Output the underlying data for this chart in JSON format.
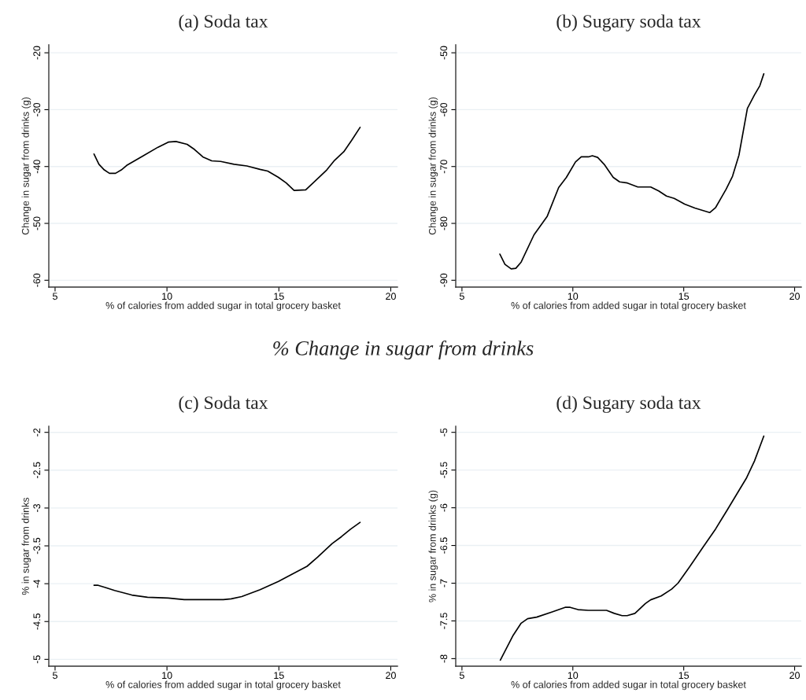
{
  "chart_data": [
    {
      "type": "line",
      "title": "(a) Soda tax",
      "xlabel": "% of calories from added sugar in total grocery basket",
      "ylabel": "Change in sugar from drinks (g)",
      "xlim": [
        4.72,
        20.3
      ],
      "xticks": [
        5,
        10,
        15,
        20
      ],
      "ylim": [
        -61.2,
        -18.6
      ],
      "yticks": [
        -60,
        -50,
        -40,
        -30,
        -20
      ],
      "grid": "y",
      "marker": "none",
      "line_style": "solid",
      "series": [
        {
          "color": "#000000",
          "x": [
            6.74,
            6.96,
            7.2,
            7.43,
            7.7,
            7.96,
            8.2,
            8.9,
            9.6,
            10.06,
            10.4,
            10.9,
            11.23,
            11.6,
            12.0,
            12.4,
            13.0,
            13.57,
            14.16,
            14.5,
            14.98,
            15.33,
            15.68,
            16.2,
            16.5,
            17.14,
            17.49,
            17.9,
            18.25,
            18.63
          ],
          "values": [
            -37.8,
            -39.6,
            -40.6,
            -41.2,
            -41.2,
            -40.6,
            -39.8,
            -38.2,
            -36.6,
            -35.7,
            -35.6,
            -36.1,
            -37.0,
            -38.3,
            -39.0,
            -39.1,
            -39.6,
            -39.9,
            -40.5,
            -40.8,
            -41.9,
            -42.9,
            -44.2,
            -44.1,
            -43.0,
            -40.6,
            -38.9,
            -37.4,
            -35.4,
            -33.1
          ]
        }
      ]
    },
    {
      "type": "line",
      "title": "(b) Sugary soda tax",
      "xlabel": "% of calories from added sugar in total grocery basket",
      "ylabel": "Change in sugar from drinks (g)",
      "xlim": [
        4.72,
        20.3
      ],
      "xticks": [
        5,
        10,
        15,
        20
      ],
      "ylim": [
        -91.2,
        -48.6
      ],
      "yticks": [
        -90,
        -80,
        -70,
        -60,
        -50
      ],
      "grid": "y",
      "marker": "none",
      "line_style": "solid",
      "series": [
        {
          "color": "#000000",
          "x": [
            6.71,
            6.94,
            7.22,
            7.43,
            7.67,
            8.25,
            8.84,
            9.36,
            9.71,
            10.12,
            10.38,
            10.7,
            10.88,
            11.12,
            11.41,
            11.82,
            12.11,
            12.46,
            12.93,
            13.51,
            13.87,
            14.22,
            14.57,
            15.04,
            15.5,
            16.17,
            16.44,
            16.91,
            17.2,
            17.49,
            17.87,
            18.19,
            18.43,
            18.61
          ],
          "values": [
            -85.4,
            -87.2,
            -88.0,
            -87.9,
            -86.8,
            -82.0,
            -78.8,
            -73.7,
            -71.9,
            -69.2,
            -68.3,
            -68.3,
            -68.1,
            -68.4,
            -69.6,
            -71.9,
            -72.7,
            -72.9,
            -73.6,
            -73.6,
            -74.3,
            -75.2,
            -75.6,
            -76.6,
            -77.3,
            -78.1,
            -77.2,
            -74.0,
            -71.7,
            -68.0,
            -59.8,
            -57.4,
            -55.8,
            -53.7
          ]
        }
      ]
    },
    {
      "type": "line",
      "title": "(c) Soda tax",
      "annotations": [
        "% Change in sugar from drinks"
      ],
      "xlabel": "% of calories from added sugar in total grocery basket",
      "ylabel": "% in sugar from drinks",
      "xlim": [
        4.72,
        20.3
      ],
      "xticks": [
        5,
        10,
        15,
        20
      ],
      "ylim": [
        -5.09,
        -1.92
      ],
      "yticks": [
        -5,
        -4.5,
        -4,
        -3.5,
        -3,
        -2.5,
        -2
      ],
      "grid": "y",
      "marker": "none",
      "line_style": "solid",
      "series": [
        {
          "color": "#000000",
          "x": [
            6.74,
            6.9,
            7.25,
            7.66,
            8.43,
            9.13,
            10.06,
            10.77,
            12.52,
            12.87,
            13.34,
            14.16,
            14.98,
            15.56,
            16.26,
            16.73,
            17.38,
            17.79,
            18.2,
            18.63
          ],
          "values": [
            -4.02,
            -4.02,
            -4.05,
            -4.09,
            -4.15,
            -4.18,
            -4.19,
            -4.21,
            -4.21,
            -4.2,
            -4.17,
            -4.08,
            -3.97,
            -3.88,
            -3.77,
            -3.65,
            -3.47,
            -3.38,
            -3.28,
            -3.19
          ]
        }
      ]
    },
    {
      "type": "line",
      "title": "(d) Sugary soda tax",
      "xlabel": "% of calories from added sugar in total grocery basket",
      "ylabel": "% in sugar from drinks (g)",
      "xlim": [
        4.72,
        20.3
      ],
      "xticks": [
        5,
        10,
        15,
        20
      ],
      "ylim": [
        -8.1,
        -4.92
      ],
      "yticks": [
        -8,
        -7.5,
        -7,
        -6.5,
        -6,
        -5.5,
        -5
      ],
      "grid": "y",
      "marker": "none",
      "line_style": "solid",
      "series": [
        {
          "color": "#000000",
          "x": [
            6.73,
            7.31,
            7.67,
            7.96,
            8.37,
            9.07,
            9.65,
            9.88,
            10.23,
            10.7,
            11.52,
            11.87,
            12.22,
            12.45,
            12.8,
            13.27,
            13.51,
            13.98,
            14.45,
            14.74,
            15.27,
            15.85,
            16.44,
            16.73,
            16.96,
            17.37,
            17.84,
            18.19,
            18.61
          ],
          "values": [
            -8.02,
            -7.69,
            -7.53,
            -7.47,
            -7.45,
            -7.38,
            -7.32,
            -7.32,
            -7.35,
            -7.36,
            -7.36,
            -7.4,
            -7.43,
            -7.43,
            -7.4,
            -7.27,
            -7.22,
            -7.17,
            -7.08,
            -7.0,
            -6.78,
            -6.53,
            -6.28,
            -6.14,
            -6.03,
            -5.83,
            -5.6,
            -5.38,
            -5.05
          ]
        }
      ]
    }
  ]
}
